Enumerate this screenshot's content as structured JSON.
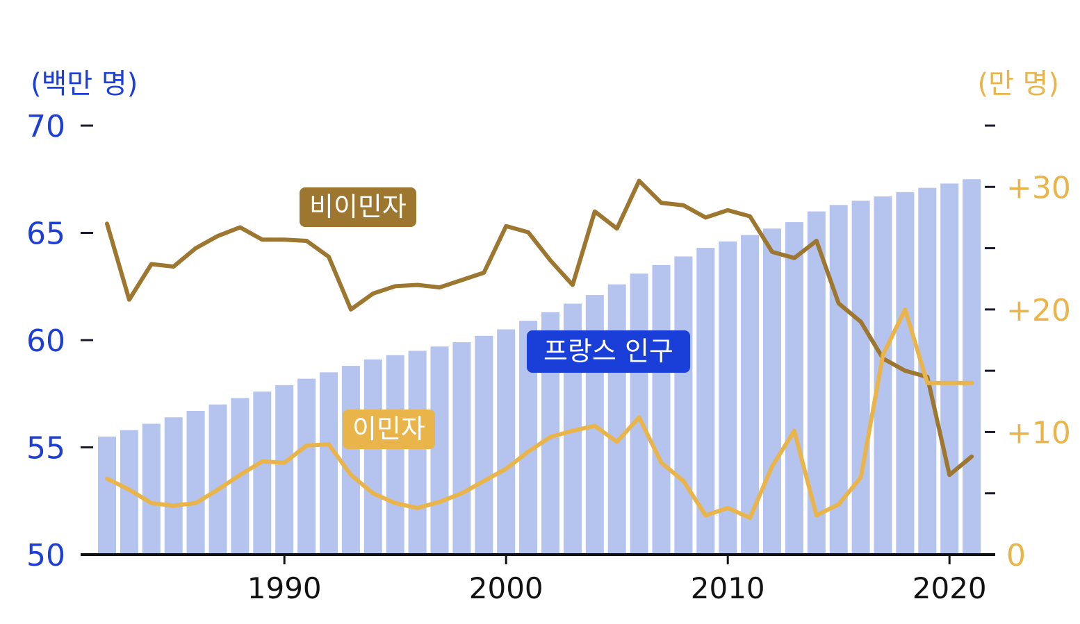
{
  "chart_data": {
    "type": "bar+line",
    "left_axis": {
      "unit": "(백만 명)",
      "range": [
        50,
        70
      ],
      "ticks": [
        50,
        55,
        60,
        65,
        70
      ],
      "tick_labels": [
        "50",
        "55",
        "60",
        "65",
        "70"
      ]
    },
    "right_axis": {
      "unit": "(만 명)",
      "range": [
        0,
        35
      ],
      "ticks": [
        0,
        5,
        10,
        15,
        20,
        25,
        30,
        35
      ],
      "tick_labels": [
        "0",
        "",
        "+10",
        "",
        "+20",
        "",
        "+30",
        ""
      ]
    },
    "x_axis": {
      "ticks": [
        1990,
        2000,
        2010,
        2020
      ],
      "tick_labels": [
        "1990",
        "2000",
        "2010",
        "2020"
      ]
    },
    "years": [
      1982,
      1983,
      1984,
      1985,
      1986,
      1987,
      1988,
      1989,
      1990,
      1991,
      1992,
      1993,
      1994,
      1995,
      1996,
      1997,
      1998,
      1999,
      2000,
      2001,
      2002,
      2003,
      2004,
      2005,
      2006,
      2007,
      2008,
      2009,
      2010,
      2011,
      2012,
      2013,
      2014,
      2015,
      2016,
      2017,
      2018,
      2019,
      2020,
      2021
    ],
    "series": [
      {
        "name": "프랑스 인구",
        "type": "bar",
        "axis": "left",
        "color": "#b5c3ef",
        "values": [
          55.5,
          55.8,
          56.1,
          56.4,
          56.7,
          57.0,
          57.3,
          57.6,
          57.9,
          58.2,
          58.5,
          58.8,
          59.1,
          59.3,
          59.5,
          59.7,
          59.9,
          60.2,
          60.5,
          60.9,
          61.3,
          61.7,
          62.1,
          62.6,
          63.1,
          63.5,
          63.9,
          64.3,
          64.6,
          64.9,
          65.2,
          65.5,
          66.0,
          66.3,
          66.5,
          66.7,
          66.9,
          67.1,
          67.3,
          67.5
        ]
      },
      {
        "name": "비이민자",
        "type": "line",
        "axis": "right",
        "color": "#9d7630",
        "values": [
          27.0,
          20.8,
          23.7,
          23.5,
          25.0,
          26.0,
          26.7,
          25.7,
          25.7,
          25.6,
          24.3,
          20.0,
          21.3,
          21.9,
          22.0,
          21.8,
          22.4,
          23.0,
          26.8,
          26.3,
          24.0,
          22.0,
          28.0,
          26.6,
          30.5,
          28.7,
          28.5,
          27.5,
          28.1,
          27.6,
          24.7,
          24.2,
          25.6,
          20.5,
          19.0,
          16.0,
          15.0,
          14.5,
          6.5,
          8.0
        ]
      },
      {
        "name": "이민자",
        "type": "line",
        "axis": "right",
        "color": "#e9b54a",
        "values": [
          6.2,
          5.3,
          4.2,
          4.0,
          4.2,
          5.3,
          6.5,
          7.6,
          7.5,
          8.9,
          9.0,
          6.5,
          5.0,
          4.2,
          3.8,
          4.3,
          5.0,
          6.0,
          7.0,
          8.4,
          9.6,
          10.1,
          10.5,
          9.2,
          11.2,
          7.5,
          6.0,
          3.2,
          3.8,
          3.0,
          7.2,
          10.1,
          3.2,
          4.1,
          6.3,
          16.3,
          20.0,
          14.0,
          14.0,
          14.0
        ]
      }
    ],
    "annotations": [
      "비이민자",
      "프랑스 인구",
      "이민자"
    ],
    "grid": false
  }
}
